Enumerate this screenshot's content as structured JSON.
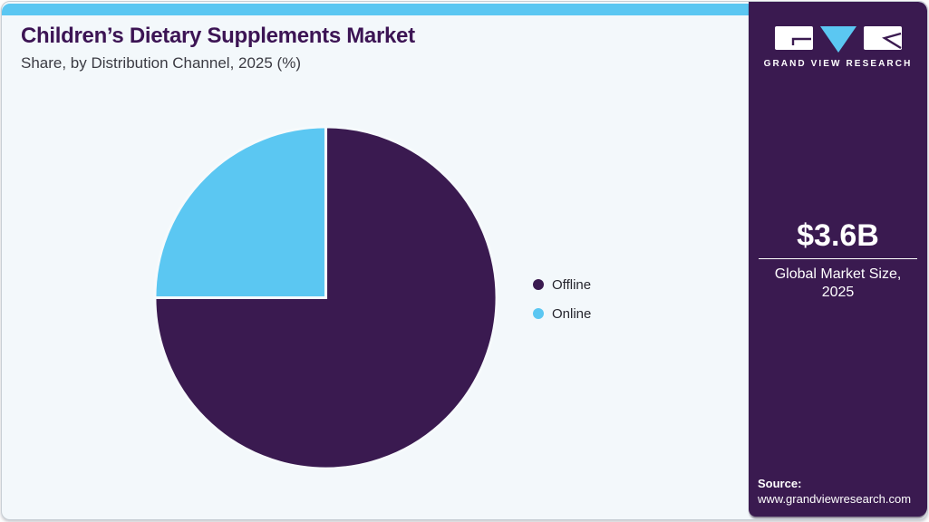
{
  "header": {
    "title": "Children’s Dietary Supplements Market",
    "subtitle": "Share, by Distribution Channel, 2025 (%)"
  },
  "chart_data": {
    "type": "pie",
    "title": "Children’s Dietary Supplements Market Share, by Distribution Channel, 2025 (%)",
    "categories": [
      "Offline",
      "Online"
    ],
    "values": [
      75,
      25
    ],
    "unit": "%",
    "colors": [
      "#3a1a50",
      "#5bc7f2"
    ],
    "start_angle_deg": -90,
    "direction": "clockwise",
    "legend_position": "right",
    "data_labels_shown": false
  },
  "sidebar": {
    "logo": {
      "brand": "GRAND VIEW RESEARCH",
      "icon": "gvr-logo"
    },
    "market_size": {
      "value": "$3.6B",
      "label_line1": "Global Market Size,",
      "label_line2": "2025"
    },
    "source": {
      "label": "Source:",
      "url": "www.grandviewresearch.com"
    }
  },
  "colors": {
    "accent_blue": "#5bc7f2",
    "brand_purple": "#3a1a50",
    "card_background": "#f3f8fb",
    "title_purple": "#3c1454"
  }
}
